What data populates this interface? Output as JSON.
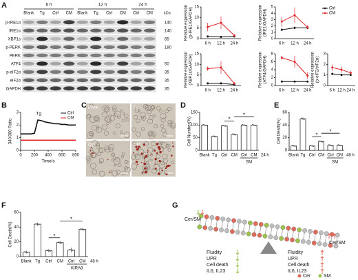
{
  "panels": [
    "A",
    "B",
    "C",
    "D",
    "E",
    "F",
    "G"
  ],
  "blot": {
    "times": [
      "6 h",
      "12 h",
      "24 h"
    ],
    "lanes": [
      "Blank",
      "Tg",
      "Ctrl",
      "CM",
      "Blank",
      "Tg",
      "Ctrl",
      "CM",
      "Ctrl",
      "CM"
    ],
    "rows": [
      "p-IRE1α",
      "IRE1α",
      "XBP1s",
      "p-PERK",
      "PERK",
      "ATF4",
      "p-eIF2α",
      "eIF2α",
      "GAPDH"
    ],
    "kda_title": "kDa",
    "kda": [
      140,
      140,
      65,
      180,
      null,
      50,
      35,
      35,
      35
    ]
  },
  "micrographs": {
    "labels": [
      "Blank",
      "Tg",
      "Ctrl",
      "CM"
    ]
  },
  "chart_data": [
    {
      "type": "line",
      "ylabel": [
        "Relative expression",
        "(p-IRE1/GAPDH)"
      ],
      "categories": [
        "6 h",
        "12 h",
        "24 h"
      ],
      "ylim": [
        0,
        15
      ],
      "yticks": [
        0,
        5,
        10,
        15
      ],
      "series": [
        {
          "name": "Ctrl",
          "color": "#111111",
          "values": [
            1,
            0.8,
            1
          ],
          "errors": [
            0.2,
            0.2,
            0.2
          ]
        },
        {
          "name": "CM",
          "color": "#e0262b",
          "values": [
            5.5,
            7.5,
            1.5
          ],
          "errors": [
            2,
            3,
            0.5
          ]
        }
      ]
    },
    {
      "type": "line",
      "ylabel": [
        "Relative expression",
        "(IRE1/GAPDH)"
      ],
      "categories": [
        "6 h",
        "12 h",
        "24 h"
      ],
      "ylim": [
        0,
        5
      ],
      "yticks": [
        0,
        1,
        2,
        3,
        4,
        5
      ],
      "legend": "right",
      "series": [
        {
          "name": "Ctrl",
          "color": "#111111",
          "values": [
            1.4,
            1.7,
            1.7
          ],
          "errors": [
            0.2,
            0.2,
            0.2
          ]
        },
        {
          "name": "CM",
          "color": "#e0262b",
          "values": [
            2.7,
            3.7,
            1.8
          ],
          "errors": [
            0.8,
            1.2,
            0.3
          ]
        }
      ]
    },
    {
      "type": "line",
      "ylabel": [
        "Relative expression",
        "(XBP1s/GAPDH)"
      ],
      "categories": [
        "6 h",
        "12 h",
        "24 h"
      ],
      "ylim": [
        0,
        15
      ],
      "yticks": [
        0,
        5,
        10,
        15
      ],
      "series": [
        {
          "name": "Ctrl",
          "color": "#111111",
          "values": [
            1,
            1,
            0.5
          ],
          "errors": [
            0.2,
            0.2,
            0.2
          ]
        },
        {
          "name": "CM",
          "color": "#e0262b",
          "values": [
            8,
            8.5,
            1
          ],
          "errors": [
            1,
            3,
            0.5
          ]
        }
      ]
    },
    {
      "type": "line",
      "ylabel": [
        "Relative expression",
        "(ATF4/GAPDH)"
      ],
      "categories": [
        "6 h",
        "12 h",
        "24 h"
      ],
      "ylim": [
        0,
        8
      ],
      "yticks": [
        0,
        2,
        4,
        6,
        8
      ],
      "series": [
        {
          "name": "Ctrl",
          "color": "#111111",
          "values": [
            1,
            1,
            1
          ],
          "errors": [
            0.1,
            0.1,
            0.1
          ]
        },
        {
          "name": "CM",
          "color": "#e0262b",
          "values": [
            7,
            6,
            2.5
          ],
          "errors": [
            0.5,
            1.5,
            0.8
          ]
        }
      ]
    },
    {
      "type": "line",
      "ylabel": [
        "Relative expression",
        "(p-eIF2/eIF2α)"
      ],
      "categories": [
        "6 h",
        "12 h",
        "24 h"
      ],
      "ylim": [
        0,
        3
      ],
      "yticks": [
        0,
        1,
        2,
        3
      ],
      "series": [
        {
          "name": "Ctrl",
          "color": "#111111",
          "values": [
            1.1,
            1,
            1
          ],
          "errors": [
            0.1,
            0.1,
            0.1
          ]
        },
        {
          "name": "CM",
          "color": "#e0262b",
          "values": [
            1.7,
            1.5,
            1.2
          ],
          "errors": [
            0.3,
            0.3,
            0.2
          ]
        }
      ]
    },
    {
      "type": "line",
      "ylabel": [
        "340/380 Ratio"
      ],
      "xlabel": "Time/s",
      "annotation": "Tg",
      "legend": "upper right",
      "x": [
        0,
        50,
        100,
        150,
        200,
        250,
        300,
        350,
        400,
        450,
        500,
        550,
        600,
        650,
        700,
        750,
        800
      ],
      "xlim": [
        0,
        800
      ],
      "xticks": [
        0,
        200,
        400,
        600,
        800
      ],
      "ylim": [
        0,
        3
      ],
      "yticks": [
        0,
        1,
        2,
        3
      ],
      "series": [
        {
          "name": "Ctrl",
          "color": "#111111",
          "values": [
            1.3,
            1.3,
            1.3,
            1.3,
            1.35,
            2.4,
            2.35,
            2.25,
            2.2,
            2.15,
            2.1,
            2.1,
            2.05,
            2.05,
            2.0,
            2.0,
            2.0
          ]
        },
        {
          "name": "CM",
          "color": "#e0262b",
          "values": [
            0.8,
            0.8,
            0.8,
            0.8,
            0.8,
            0.8,
            0.8,
            0.8,
            0.8,
            0.8,
            0.8,
            0.8,
            0.8,
            0.8,
            0.8,
            0.8,
            0.8
          ]
        }
      ]
    },
    {
      "type": "bar",
      "ylabel": [
        "Cell Number(%)"
      ],
      "categories": [
        "Blank",
        "Tg",
        "Ctrl",
        "CM",
        "Ctrl",
        "CM"
      ],
      "group_label": "SM",
      "time_label": "24 h",
      "significance": [
        "*",
        "*"
      ],
      "ylim": [
        0,
        150
      ],
      "yticks": [
        0,
        50,
        100,
        150
      ],
      "color": "#ffffff",
      "values": [
        100,
        55,
        97,
        63,
        100,
        100
      ],
      "errors": [
        2,
        3,
        3,
        3,
        2,
        2
      ]
    },
    {
      "type": "bar",
      "ylabel": [
        "Cell Death(%)"
      ],
      "categories": [
        "Blank",
        "Tg",
        "Ctrl",
        "CM",
        "Ctrl",
        "CM"
      ],
      "group_label": "SM",
      "time_label": "48 h",
      "significance": [
        "*",
        "*"
      ],
      "ylim": [
        0,
        60
      ],
      "yticks": [
        0,
        20,
        40,
        60
      ],
      "color": "#ffffff",
      "values": [
        7,
        50,
        7,
        14,
        8,
        8
      ],
      "errors": [
        1,
        2,
        1,
        1.5,
        1,
        1
      ]
    },
    {
      "type": "bar",
      "ylabel": [
        "Cell Death(%)"
      ],
      "categories": [
        "Blank",
        "Tg",
        "Ctrl",
        "CM",
        "Ctrl",
        "CM"
      ],
      "group_label": "KIRA8",
      "time_label": "48 h",
      "significance": [
        "*",
        "*"
      ],
      "ylim": [
        0,
        60
      ],
      "yticks": [
        0,
        20,
        40,
        60
      ],
      "color": "#ffffff",
      "values": [
        6,
        44,
        8,
        19,
        9,
        37
      ],
      "errors": [
        2,
        2,
        2,
        2,
        3,
        1.5
      ]
    }
  ],
  "diagram": {
    "left": {
      "label": "Cer/SM",
      "effects": [
        "Fluidity",
        "UPR",
        "Cell death",
        "IL6, IL23"
      ]
    },
    "right": {
      "label": "Cer/SM",
      "effects": [
        "Fluidity",
        "UPR",
        "Cell death",
        "IL6, IL23"
      ]
    },
    "legend": [
      "Cer",
      "SM"
    ]
  }
}
